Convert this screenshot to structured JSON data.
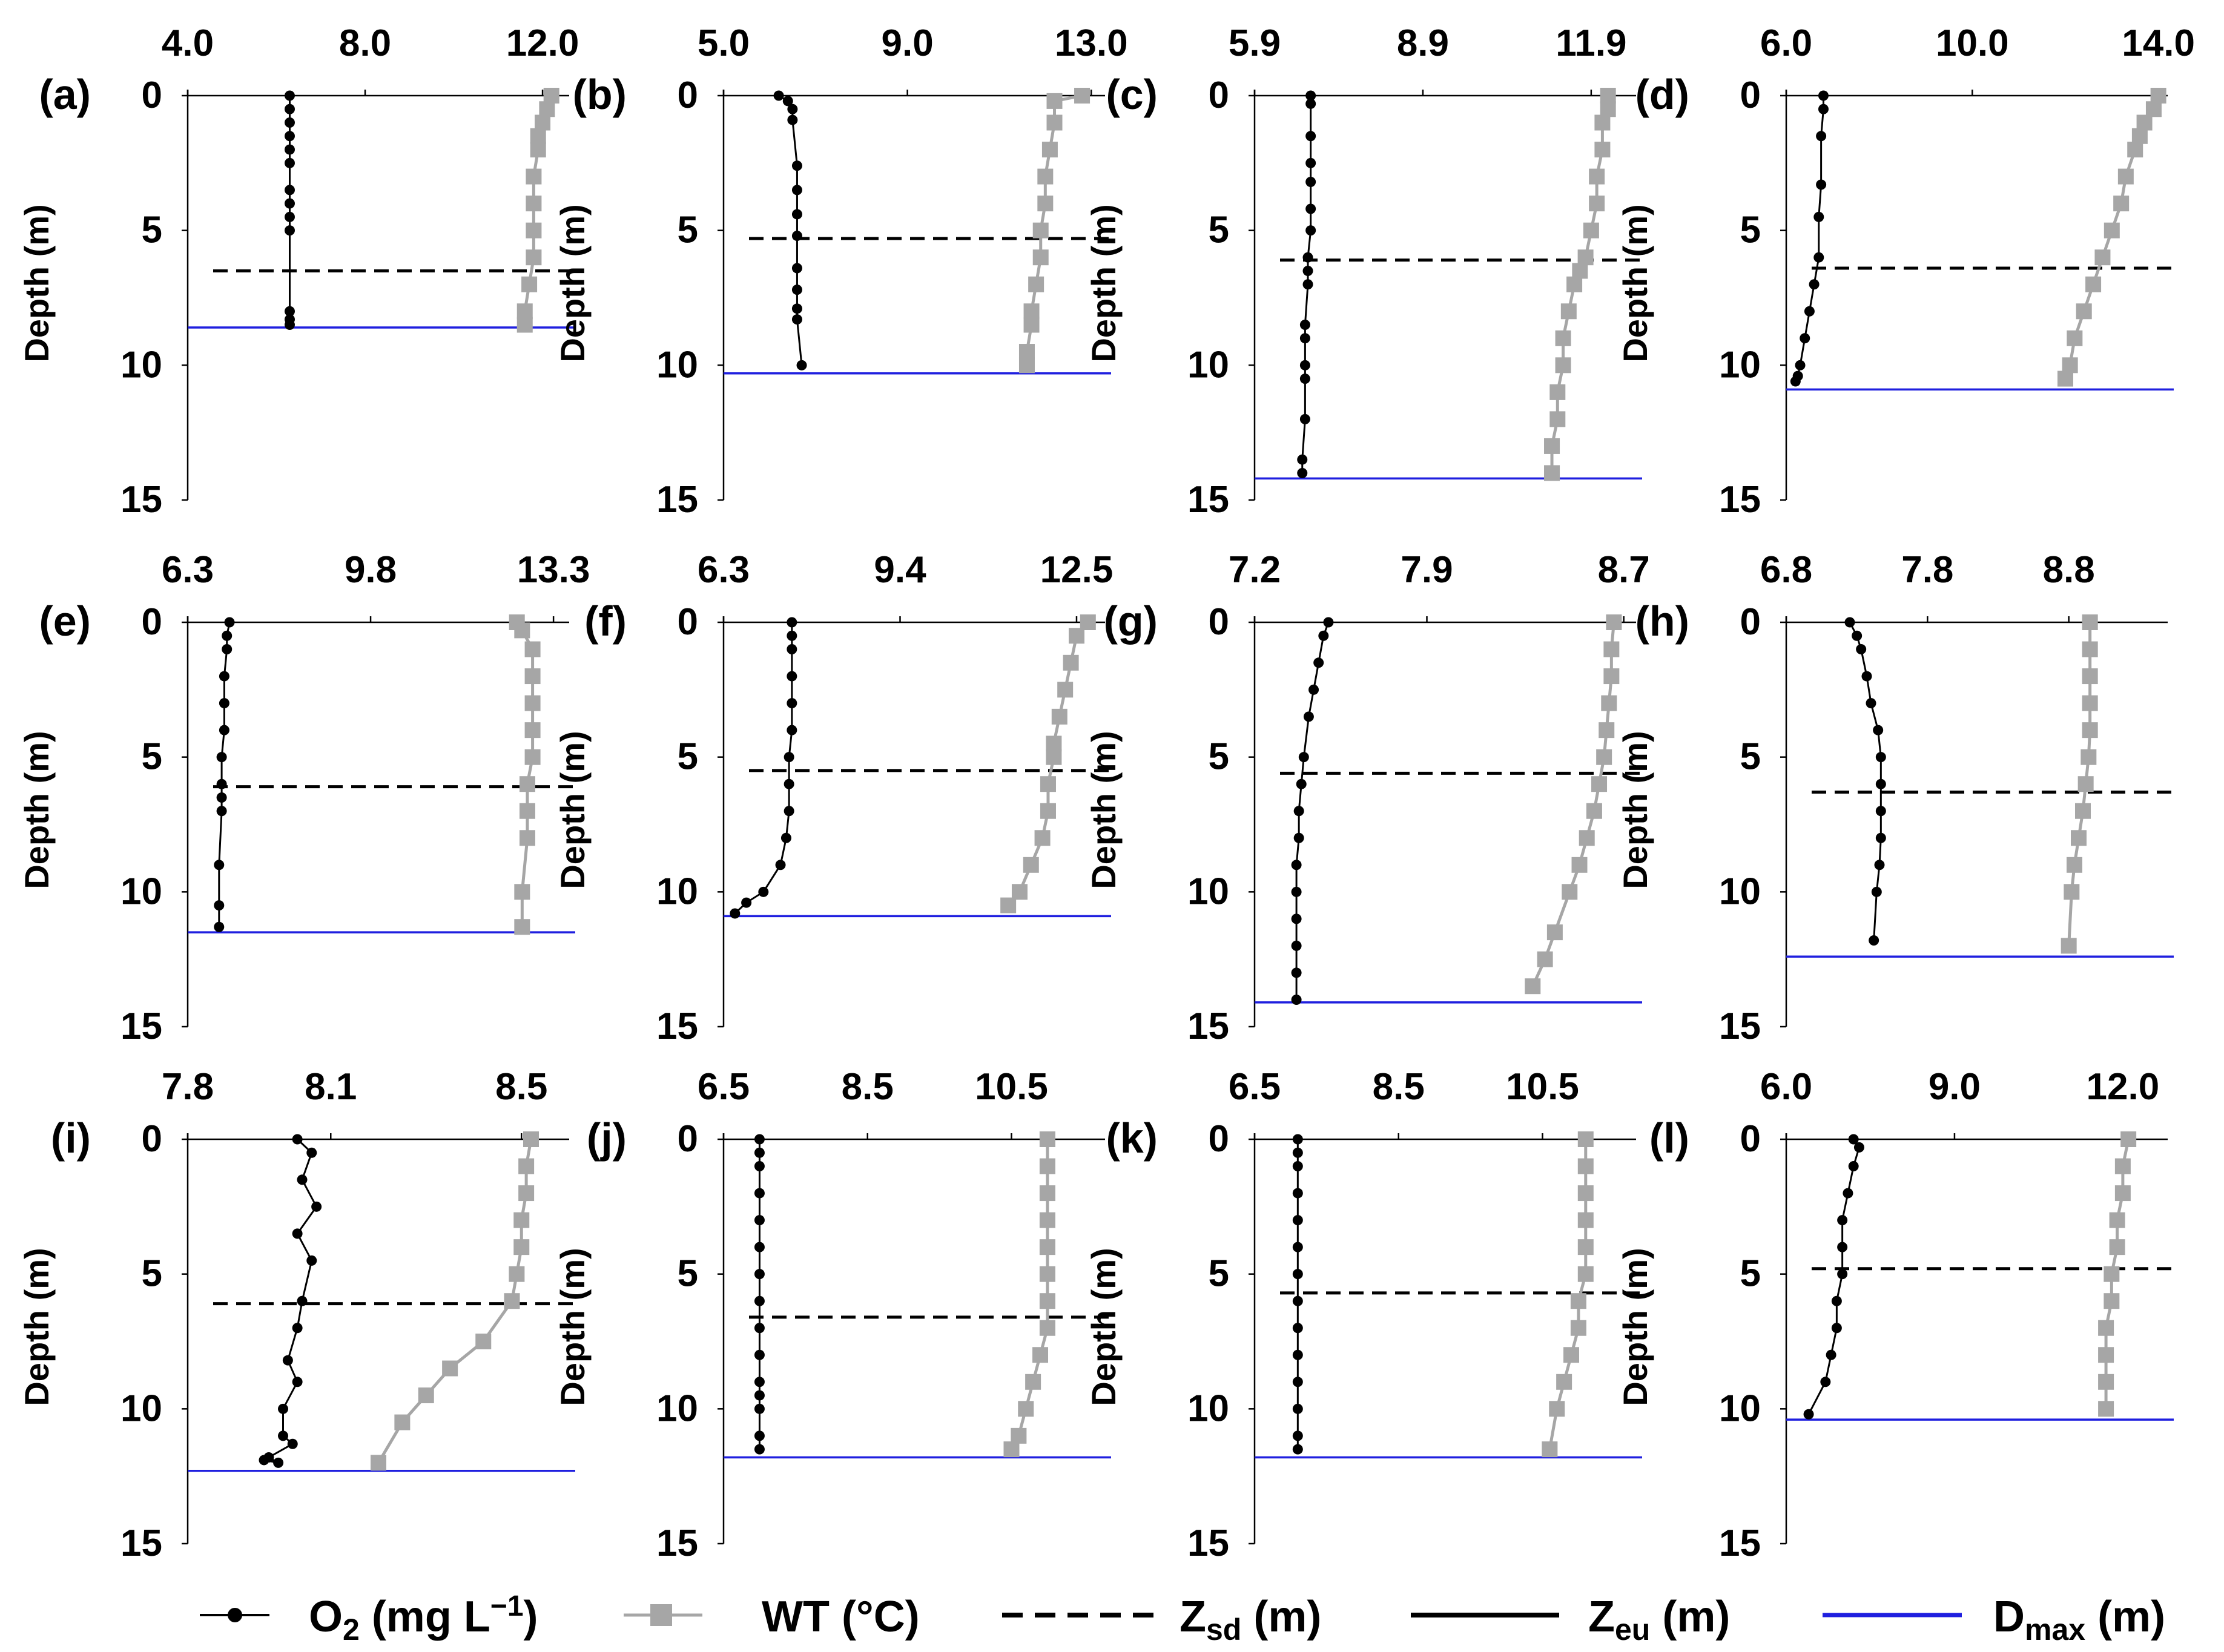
{
  "figure": {
    "y_axis_label": "Depth (m)",
    "y_ticks": [
      0,
      5,
      10,
      15
    ],
    "legend": [
      {
        "key": "o2",
        "label": "O₂ (mg L⁻¹)",
        "color": "#000000",
        "style": "dots"
      },
      {
        "key": "wt",
        "label": "WT (°C)",
        "color": "#a6a6a6",
        "style": "squares"
      },
      {
        "key": "zsd",
        "label": "Z",
        "sub": "sd",
        "suffix": " (m)",
        "color": "#000000",
        "style": "dashed"
      },
      {
        "key": "zeu",
        "label": "Z",
        "sub": "eu",
        "suffix": " (m)",
        "color": "#000000",
        "style": "solid"
      },
      {
        "key": "dmax",
        "label": "D",
        "sub": "max",
        "suffix": " (m)",
        "color": "#1f1fdf",
        "style": "solid"
      }
    ]
  },
  "chart_data": [
    {
      "panel": "(a)",
      "type": "line",
      "x_ticks": [
        "4.0",
        "8.0",
        "12.0"
      ],
      "xlim": [
        4.0,
        12.6
      ],
      "ylim": [
        0,
        15
      ],
      "o2": {
        "x": [
          6.3,
          6.3,
          6.3,
          6.3,
          6.3,
          6.3,
          6.3,
          6.3,
          6.3,
          6.3,
          6.3,
          6.3,
          6.3
        ],
        "depth": [
          0,
          0.5,
          1,
          1.5,
          2,
          2.5,
          3.5,
          4,
          4.5,
          5,
          8,
          8.3,
          8.5
        ]
      },
      "wt": {
        "x": [
          12.2,
          12.1,
          12.0,
          11.9,
          11.9,
          11.8,
          11.8,
          11.8,
          11.8,
          11.7,
          11.6,
          11.6
        ],
        "depth": [
          0,
          0.5,
          1,
          1.5,
          2,
          3,
          4,
          5,
          6,
          7,
          8,
          8.5
        ]
      },
      "zsd": 6.5,
      "zeu": 0,
      "dmax": 8.6
    },
    {
      "panel": "(b)",
      "type": "line",
      "x_ticks": [
        "5.0",
        "9.0",
        "13.0"
      ],
      "xlim": [
        5.0,
        13.3
      ],
      "ylim": [
        0,
        15
      ],
      "o2": {
        "x": [
          6.2,
          6.4,
          6.5,
          6.5,
          6.6,
          6.6,
          6.6,
          6.6,
          6.6,
          6.6,
          6.6,
          6.6,
          6.7
        ],
        "depth": [
          0,
          0.2,
          0.5,
          0.9,
          2.6,
          3.5,
          4.4,
          5.2,
          6.4,
          7.2,
          7.9,
          8.3,
          10
        ]
      },
      "wt": {
        "x": [
          12.8,
          12.2,
          12.2,
          12.1,
          12.0,
          12.0,
          11.9,
          11.9,
          11.8,
          11.7,
          11.7,
          11.6,
          11.6
        ],
        "depth": [
          0,
          0.2,
          1,
          2,
          3,
          4,
          5,
          6,
          7,
          8,
          8.5,
          9.5,
          10
        ]
      },
      "zsd": 5.3,
      "zeu": 0,
      "dmax": 10.3
    },
    {
      "panel": "(c)",
      "type": "line",
      "x_ticks": [
        "5.9",
        "8.9",
        "11.9"
      ],
      "xlim": [
        5.9,
        12.7
      ],
      "ylim": [
        0,
        15
      ],
      "o2": {
        "x": [
          6.9,
          6.9,
          6.9,
          6.9,
          6.9,
          6.9,
          6.9,
          6.85,
          6.85,
          6.85,
          6.8,
          6.8,
          6.8,
          6.8,
          6.8,
          6.75,
          6.75
        ],
        "depth": [
          0,
          0.3,
          1.5,
          2.5,
          3.2,
          4.2,
          5,
          6,
          6.5,
          7,
          8.5,
          9,
          10,
          10.5,
          12,
          13.5,
          14
        ]
      },
      "wt": {
        "x": [
          12.2,
          12.2,
          12.1,
          12.1,
          12.0,
          12.0,
          11.9,
          11.8,
          11.7,
          11.6,
          11.5,
          11.4,
          11.4,
          11.3,
          11.3,
          11.2,
          11.2
        ],
        "depth": [
          0,
          0.5,
          1,
          2,
          3,
          4,
          5,
          6,
          6.5,
          7,
          8,
          9,
          10,
          11,
          12,
          13,
          14
        ]
      },
      "zsd": 6.1,
      "zeu": 0,
      "dmax": 14.2
    },
    {
      "panel": "(d)",
      "type": "line",
      "x_ticks": [
        "6.0",
        "10.0",
        "14.0"
      ],
      "xlim": [
        6.0,
        14.2
      ],
      "ylim": [
        0,
        15
      ],
      "o2": {
        "x": [
          6.8,
          6.8,
          6.75,
          6.75,
          6.7,
          6.7,
          6.6,
          6.5,
          6.4,
          6.3,
          6.25,
          6.2
        ],
        "depth": [
          0,
          0.5,
          1.5,
          3.3,
          4.5,
          6,
          7,
          8,
          9,
          10,
          10.4,
          10.6
        ]
      },
      "wt": {
        "x": [
          14.0,
          13.9,
          13.7,
          13.6,
          13.5,
          13.3,
          13.2,
          13.0,
          12.8,
          12.6,
          12.4,
          12.2,
          12.1,
          12.0
        ],
        "depth": [
          0,
          0.5,
          1,
          1.5,
          2,
          3,
          4,
          5,
          6,
          7,
          8,
          9,
          10,
          10.5
        ]
      },
      "zsd": 6.4,
      "zeu": 0,
      "dmax": 10.9
    },
    {
      "panel": "(e)",
      "type": "line",
      "x_ticks": [
        "6.3",
        "9.8",
        "13.3"
      ],
      "xlim": [
        6.3,
        13.6
      ],
      "ylim": [
        0,
        15
      ],
      "o2": {
        "x": [
          7.1,
          7.05,
          7.05,
          7.0,
          7.0,
          7.0,
          6.95,
          6.95,
          6.95,
          6.95,
          6.9,
          6.9,
          6.9
        ],
        "depth": [
          0,
          0.5,
          1,
          2,
          3,
          4,
          5,
          6,
          6.5,
          7,
          9,
          10.5,
          11.3
        ]
      },
      "wt": {
        "x": [
          12.6,
          12.7,
          12.9,
          12.9,
          12.9,
          12.9,
          12.9,
          12.8,
          12.8,
          12.8,
          12.7,
          12.7
        ],
        "depth": [
          0,
          0.3,
          1,
          2,
          3,
          4,
          5,
          6,
          7,
          8,
          10,
          11.3
        ]
      },
      "zsd": 6.1,
      "zeu": 0,
      "dmax": 11.5
    },
    {
      "panel": "(f)",
      "type": "line",
      "x_ticks": [
        "6.3",
        "9.4",
        "12.5"
      ],
      "xlim": [
        6.3,
        13.0
      ],
      "ylim": [
        0,
        15
      ],
      "o2": {
        "x": [
          7.5,
          7.5,
          7.5,
          7.5,
          7.5,
          7.5,
          7.45,
          7.45,
          7.45,
          7.4,
          7.3,
          7.0,
          6.7,
          6.5
        ],
        "depth": [
          0,
          0.5,
          1,
          2,
          3,
          4,
          5,
          6,
          7,
          8,
          9,
          10,
          10.4,
          10.8
        ]
      },
      "wt": {
        "x": [
          12.7,
          12.5,
          12.4,
          12.3,
          12.2,
          12.1,
          12.1,
          12.0,
          12.0,
          11.9,
          11.7,
          11.5,
          11.3
        ],
        "depth": [
          0,
          0.5,
          1.5,
          2.5,
          3.5,
          4.5,
          5,
          6,
          7,
          8,
          9,
          10,
          10.5
        ]
      },
      "zsd": 5.5,
      "zeu": 0,
      "dmax": 10.9
    },
    {
      "panel": "(g)",
      "type": "line",
      "x_ticks": [
        "7.2",
        "7.9",
        "8.7"
      ],
      "xlim": [
        7.2,
        8.75
      ],
      "ylim": [
        0,
        15
      ],
      "o2": {
        "x": [
          7.5,
          7.48,
          7.46,
          7.44,
          7.42,
          7.4,
          7.39,
          7.38,
          7.38,
          7.37,
          7.37,
          7.37,
          7.37,
          7.37,
          7.37
        ],
        "depth": [
          0,
          0.5,
          1.5,
          2.5,
          3.5,
          5,
          6,
          7,
          8,
          9,
          10,
          11,
          12,
          13,
          14
        ]
      },
      "wt": {
        "x": [
          8.66,
          8.65,
          8.65,
          8.64,
          8.63,
          8.62,
          8.6,
          8.58,
          8.55,
          8.52,
          8.48,
          8.42,
          8.38,
          8.33
        ],
        "depth": [
          0,
          1,
          2,
          3,
          4,
          5,
          6,
          7,
          8,
          9,
          10,
          11.5,
          12.5,
          13.5
        ]
      },
      "zsd": 5.6,
      "zeu": 0,
      "dmax": 14.1
    },
    {
      "panel": "(h)",
      "type": "line",
      "x_ticks": [
        "6.8",
        "7.8",
        "8.8"
      ],
      "xlim": [
        6.8,
        9.5
      ],
      "ylim": [
        0,
        15
      ],
      "o2": {
        "x": [
          7.25,
          7.3,
          7.33,
          7.37,
          7.4,
          7.45,
          7.47,
          7.47,
          7.47,
          7.47,
          7.46,
          7.44,
          7.42
        ],
        "depth": [
          0,
          0.5,
          1,
          2,
          3,
          4,
          5,
          6,
          7,
          8,
          9,
          10,
          11.8
        ]
      },
      "wt": {
        "x": [
          8.95,
          8.95,
          8.95,
          8.95,
          8.95,
          8.94,
          8.92,
          8.9,
          8.87,
          8.84,
          8.82,
          8.8
        ],
        "depth": [
          0,
          1,
          2,
          3,
          4,
          5,
          6,
          7,
          8,
          9,
          10,
          12
        ]
      },
      "zsd": 6.3,
      "zeu": 0,
      "dmax": 12.4
    },
    {
      "panel": "(i)",
      "type": "line",
      "x_ticks": [
        "7.8",
        "8.1",
        "8.5"
      ],
      "xlim": [
        7.8,
        8.6
      ],
      "ylim": [
        0,
        15
      ],
      "o2": {
        "x": [
          8.03,
          8.06,
          8.04,
          8.07,
          8.03,
          8.06,
          8.04,
          8.03,
          8.01,
          8.03,
          8.0,
          8.0,
          8.02,
          7.97,
          7.99,
          7.96
        ],
        "depth": [
          0,
          0.5,
          1.5,
          2.5,
          3.5,
          4.5,
          6,
          7,
          8.2,
          9,
          10,
          11,
          11.3,
          11.8,
          12,
          11.9
        ]
      },
      "wt": {
        "x": [
          8.52,
          8.51,
          8.51,
          8.5,
          8.5,
          8.49,
          8.48,
          8.42,
          8.35,
          8.3,
          8.25,
          8.2
        ],
        "depth": [
          0,
          1,
          2,
          3,
          4,
          5,
          6,
          7.5,
          8.5,
          9.5,
          10.5,
          12
        ]
      },
      "zsd": 6.1,
      "zeu": 0,
      "dmax": 12.3
    },
    {
      "panel": "(j)",
      "type": "line",
      "x_ticks": [
        "6.5",
        "8.5",
        "10.5"
      ],
      "xlim": [
        6.5,
        11.8
      ],
      "ylim": [
        0,
        15
      ],
      "o2": {
        "x": [
          7.0,
          7.0,
          7.0,
          7.0,
          7.0,
          7.0,
          7.0,
          7.0,
          7.0,
          7.0,
          7.0,
          7.0,
          7.0,
          7.0,
          7.0
        ],
        "depth": [
          0,
          0.5,
          1,
          2,
          3,
          4,
          5,
          6,
          7,
          8,
          9,
          9.5,
          10,
          11,
          11.5
        ]
      },
      "wt": {
        "x": [
          11.0,
          11.0,
          11.0,
          11.0,
          11.0,
          11.0,
          11.0,
          11.0,
          10.9,
          10.8,
          10.7,
          10.6,
          10.5
        ],
        "depth": [
          0,
          1,
          2,
          3,
          4,
          5,
          6,
          7,
          8,
          9,
          10,
          11,
          11.5
        ]
      },
      "zsd": 6.6,
      "zeu": 0,
      "dmax": 11.8
    },
    {
      "panel": "(k)",
      "type": "line",
      "x_ticks": [
        "6.5",
        "8.5",
        "10.5"
      ],
      "xlim": [
        6.5,
        11.8
      ],
      "ylim": [
        0,
        15
      ],
      "o2": {
        "x": [
          7.1,
          7.1,
          7.1,
          7.1,
          7.1,
          7.1,
          7.1,
          7.1,
          7.1,
          7.1,
          7.1,
          7.1,
          7.1,
          7.1
        ],
        "depth": [
          0,
          0.5,
          1,
          2,
          3,
          4,
          5,
          6,
          7,
          8,
          9,
          10,
          11,
          11.5
        ]
      },
      "wt": {
        "x": [
          11.1,
          11.1,
          11.1,
          11.1,
          11.1,
          11.1,
          11.0,
          11.0,
          10.9,
          10.8,
          10.7,
          10.6
        ],
        "depth": [
          0,
          1,
          2,
          3,
          4,
          5,
          6,
          7,
          8,
          9,
          10,
          11.5
        ]
      },
      "zsd": 5.7,
      "zeu": 0,
      "dmax": 11.8
    },
    {
      "panel": "(l)",
      "type": "line",
      "x_ticks": [
        "6.0",
        "9.0",
        "12.0"
      ],
      "xlim": [
        6.0,
        12.8
      ],
      "ylim": [
        0,
        15
      ],
      "o2": {
        "x": [
          7.2,
          7.3,
          7.2,
          7.1,
          7.0,
          7.0,
          7.0,
          6.9,
          6.9,
          6.8,
          6.7,
          6.4
        ],
        "depth": [
          0,
          0.3,
          1,
          2,
          3,
          4,
          5,
          6,
          7,
          8,
          9,
          10.2
        ]
      },
      "wt": {
        "x": [
          12.1,
          12.0,
          12.0,
          11.9,
          11.9,
          11.8,
          11.8,
          11.7,
          11.7,
          11.7,
          11.7
        ],
        "depth": [
          0,
          1,
          2,
          3,
          4,
          5,
          6,
          7,
          8,
          9,
          10
        ]
      },
      "zsd": 4.8,
      "zeu": 0,
      "dmax": 10.4
    }
  ]
}
